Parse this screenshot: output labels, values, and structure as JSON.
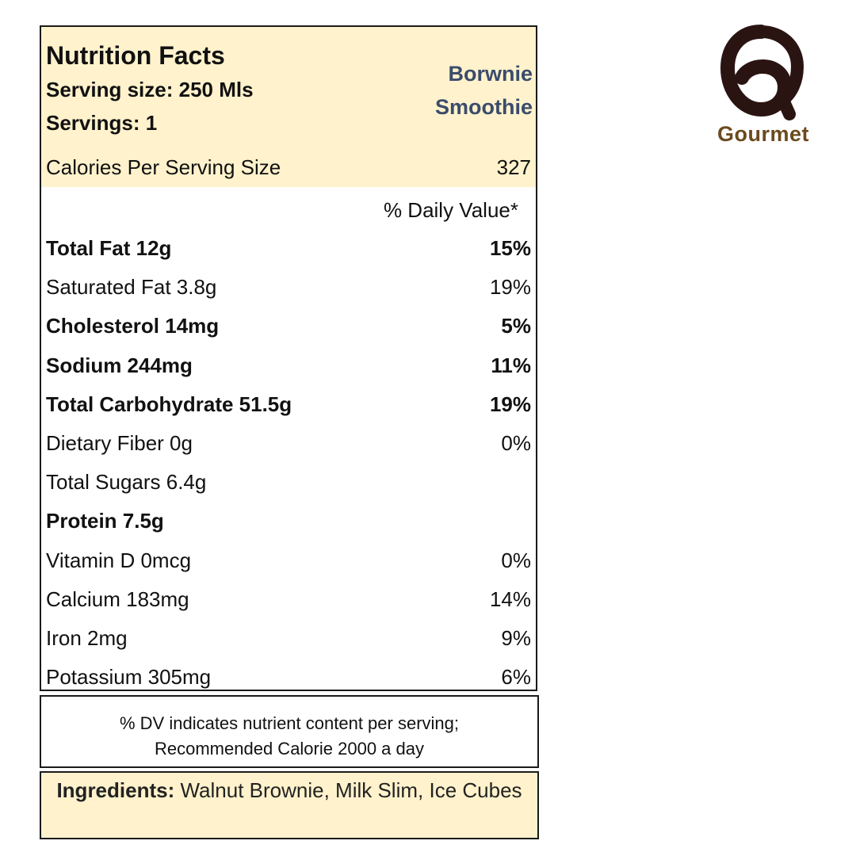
{
  "label": {
    "title": "Nutrition Facts",
    "serving_size": "Serving size: 250 Mls",
    "servings": "Servings: 1",
    "product_line1": "Borwnie",
    "product_line2": "Smoothie",
    "calories_label": "Calories Per Serving Size",
    "calories_value": "327",
    "dv_header": "% Daily Value*",
    "rows": [
      {
        "name": "Total Fat 12g",
        "pct": "15%",
        "bold": true
      },
      {
        "name": "Saturated Fat 3.8g",
        "pct": "19%",
        "bold": false
      },
      {
        "name": "Cholesterol 14mg",
        "pct": "5%",
        "bold": true
      },
      {
        "name": "Sodium 244mg",
        "pct": "11%",
        "bold": true
      },
      {
        "name": "Total Carbohydrate 51.5g",
        "pct": "19%",
        "bold": true
      },
      {
        "name": "Dietary Fiber 0g",
        "pct": "0%",
        "bold": false
      },
      {
        "name": "Total Sugars 6.4g",
        "pct": "",
        "bold": false
      },
      {
        "name": "Protein 7.5g",
        "pct": "",
        "bold": true
      },
      {
        "name": "Vitamin D 0mcg",
        "pct": "0%",
        "bold": false
      },
      {
        "name": "Calcium 183mg",
        "pct": "14%",
        "bold": false
      },
      {
        "name": "Iron 2mg",
        "pct": "9%",
        "bold": false
      },
      {
        "name": "Potassium 305mg",
        "pct": "6%",
        "bold": false
      }
    ]
  },
  "footnote": {
    "line1": "% DV indicates nutrient content per serving;",
    "line2": "Recommended Calorie 2000 a day"
  },
  "ingredients": {
    "label": "Ingredients:",
    "text": " Walnut Brownie, Milk Slim, Ice Cubes"
  },
  "logo": {
    "text": "Gourmet",
    "icon": "gourmet-logo-icon"
  },
  "colors": {
    "highlight": "#fff2cc",
    "product_text": "#3b4c6b",
    "logo_mark": "#2a1412",
    "logo_text": "#6b4a1e"
  }
}
